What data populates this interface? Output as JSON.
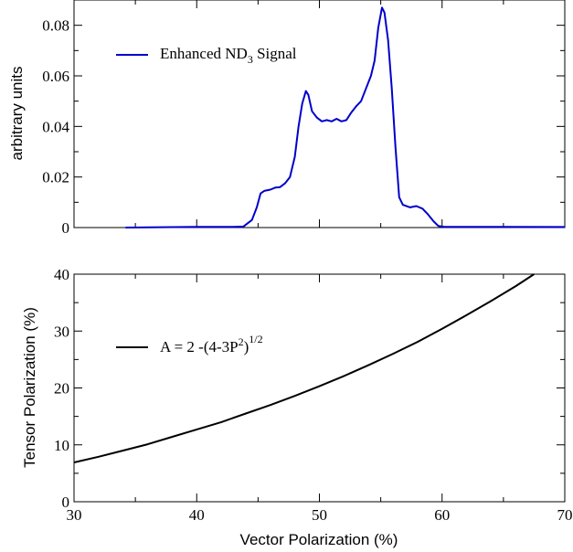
{
  "chart_data": [
    {
      "type": "line",
      "ylabel": "arbitrary units",
      "xlabel": "",
      "xlim": [
        30,
        70
      ],
      "ylim": [
        0,
        0.09
      ],
      "yticks": [
        "0",
        "0.02",
        "0.04",
        "0.06",
        "0.08"
      ],
      "x_tick_labels_shown": false,
      "grid": false,
      "legend_placement": "top-left",
      "series": [
        {
          "name": "Enhanced ND3 Signal",
          "legend_main": "Enhanced ND",
          "legend_sub": "3",
          "legend_tail": " Signal",
          "color": "#0000cc",
          "points": [
            [
              34.2,
              0.0
            ],
            [
              40.0,
              0.0003
            ],
            [
              43.0,
              0.0003
            ],
            [
              43.8,
              0.0004
            ],
            [
              44.5,
              0.003
            ],
            [
              44.9,
              0.008
            ],
            [
              45.2,
              0.0135
            ],
            [
              45.5,
              0.0145
            ],
            [
              46.0,
              0.015
            ],
            [
              46.4,
              0.0158
            ],
            [
              46.8,
              0.016
            ],
            [
              47.2,
              0.0175
            ],
            [
              47.6,
              0.02
            ],
            [
              48.0,
              0.028
            ],
            [
              48.3,
              0.04
            ],
            [
              48.6,
              0.049
            ],
            [
              48.9,
              0.054
            ],
            [
              49.1,
              0.0525
            ],
            [
              49.4,
              0.046
            ],
            [
              49.8,
              0.0435
            ],
            [
              50.2,
              0.042
            ],
            [
              50.6,
              0.0425
            ],
            [
              51.0,
              0.042
            ],
            [
              51.4,
              0.043
            ],
            [
              51.8,
              0.042
            ],
            [
              52.2,
              0.0425
            ],
            [
              52.6,
              0.0455
            ],
            [
              53.0,
              0.048
            ],
            [
              53.4,
              0.05
            ],
            [
              53.8,
              0.055
            ],
            [
              54.2,
              0.06
            ],
            [
              54.5,
              0.066
            ],
            [
              54.8,
              0.079
            ],
            [
              55.1,
              0.087
            ],
            [
              55.3,
              0.085
            ],
            [
              55.6,
              0.074
            ],
            [
              55.9,
              0.055
            ],
            [
              56.2,
              0.032
            ],
            [
              56.5,
              0.012
            ],
            [
              56.8,
              0.009
            ],
            [
              57.4,
              0.008
            ],
            [
              57.9,
              0.0085
            ],
            [
              58.4,
              0.0075
            ],
            [
              58.8,
              0.0055
            ],
            [
              59.3,
              0.0025
            ],
            [
              59.7,
              0.0006
            ],
            [
              60.2,
              0.0003
            ],
            [
              65.0,
              0.0003
            ],
            [
              70.0,
              0.0002
            ]
          ]
        }
      ]
    },
    {
      "type": "line",
      "xlabel": "Vector Polarization (%)",
      "ylabel": "Tensor Polarization (%)",
      "xlim": [
        30,
        70
      ],
      "ylim": [
        0,
        40
      ],
      "xticks": [
        "30",
        "40",
        "50",
        "60",
        "70"
      ],
      "yticks": [
        "0",
        "10",
        "20",
        "30",
        "40"
      ],
      "grid": false,
      "legend_placement": "top-left",
      "series": [
        {
          "name": "A = 2 -(4-3P2)1/2",
          "legend_a": "A = 2 -(4-3P",
          "legend_exp1": "2",
          "legend_b": ")",
          "legend_exp2": "1/2",
          "color": "#000000",
          "points": [
            [
              30,
              6.9
            ],
            [
              32,
              7.9
            ],
            [
              34,
              9.0
            ],
            [
              36,
              10.1
            ],
            [
              38,
              11.4
            ],
            [
              40,
              12.7
            ],
            [
              42,
              14.0
            ],
            [
              44,
              15.5
            ],
            [
              46,
              17.0
            ],
            [
              48,
              18.6
            ],
            [
              50,
              20.3
            ],
            [
              52,
              22.1
            ],
            [
              54,
              24.0
            ],
            [
              56,
              26.0
            ],
            [
              58,
              28.1
            ],
            [
              60,
              30.4
            ],
            [
              62,
              32.8
            ],
            [
              64,
              35.3
            ],
            [
              66,
              37.9
            ],
            [
              68,
              40.7
            ],
            [
              70,
              43.6
            ]
          ]
        }
      ]
    }
  ]
}
